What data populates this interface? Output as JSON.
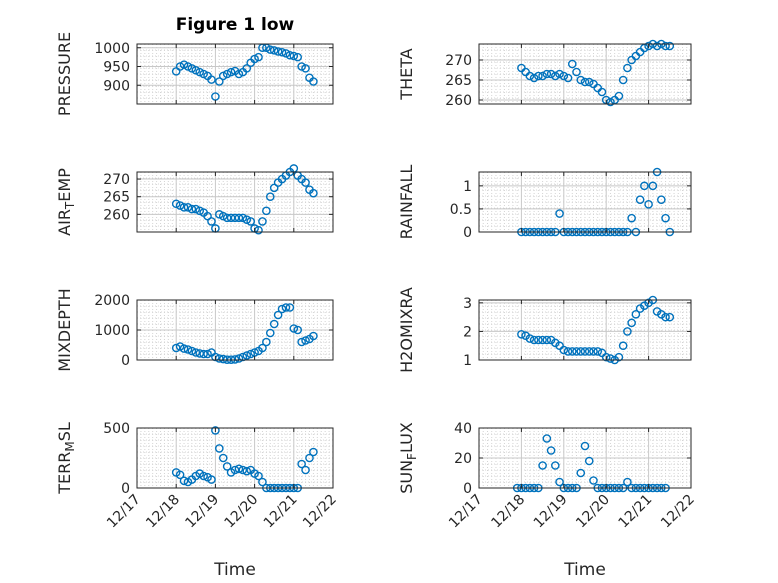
{
  "figure": {
    "title": "Figure 1 low"
  },
  "chart_data": [
    {
      "type": "scatter",
      "title": "Figure 1 low",
      "xlabel": "",
      "ylabel": "PRESSURE",
      "xlim": [
        0,
        5
      ],
      "ylim": [
        850,
        1010
      ],
      "yticks": [
        900,
        950,
        1000
      ],
      "xtick_labels": [
        "12/17",
        "12/18",
        "12/19",
        "12/20",
        "12/21",
        "12/22"
      ],
      "show_xticklabels": false,
      "marker_color": "#0072BD",
      "x": [
        1.0,
        1.1,
        1.2,
        1.3,
        1.4,
        1.5,
        1.6,
        1.7,
        1.8,
        1.9,
        2.0,
        2.1,
        2.2,
        2.3,
        2.4,
        2.5,
        2.6,
        2.7,
        2.8,
        2.9,
        3.0,
        3.1,
        3.2,
        3.3,
        3.4,
        3.5,
        3.6,
        3.7,
        3.8,
        3.9,
        4.0,
        4.1,
        4.2,
        4.3,
        4.4,
        4.5
      ],
      "y": [
        937,
        950,
        955,
        950,
        945,
        940,
        935,
        930,
        925,
        915,
        870,
        910,
        925,
        930,
        935,
        938,
        930,
        935,
        945,
        960,
        970,
        975,
        1000,
        1000,
        995,
        993,
        990,
        988,
        985,
        980,
        978,
        975,
        950,
        945,
        920,
        910
      ]
    },
    {
      "type": "scatter",
      "title": "",
      "xlabel": "",
      "ylabel": "THETA",
      "xlim": [
        0,
        5
      ],
      "ylim": [
        259,
        274
      ],
      "yticks": [
        260,
        265,
        270
      ],
      "xtick_labels": [
        "12/17",
        "12/18",
        "12/19",
        "12/20",
        "12/21",
        "12/22"
      ],
      "show_xticklabels": false,
      "marker_color": "#0072BD",
      "x": [
        1.0,
        1.1,
        1.2,
        1.3,
        1.4,
        1.5,
        1.6,
        1.7,
        1.8,
        1.9,
        2.0,
        2.1,
        2.2,
        2.3,
        2.4,
        2.5,
        2.6,
        2.7,
        2.8,
        2.9,
        3.0,
        3.1,
        3.2,
        3.3,
        3.4,
        3.5,
        3.6,
        3.7,
        3.8,
        3.9,
        4.0,
        4.1,
        4.2,
        4.3,
        4.4,
        4.5
      ],
      "y": [
        268,
        267,
        266,
        265.5,
        266,
        266,
        266.5,
        266.5,
        266,
        266.5,
        266,
        265.5,
        269,
        267,
        265,
        264.5,
        264.5,
        264,
        263,
        262,
        260,
        259.5,
        260,
        261,
        265,
        268,
        270,
        271,
        272,
        273,
        273.5,
        274,
        273.5,
        274,
        273.5,
        273.5
      ]
    },
    {
      "type": "scatter",
      "title": "",
      "xlabel": "",
      "ylabel": "AIR_TEMP",
      "xlim": [
        0,
        5
      ],
      "ylim": [
        255,
        272
      ],
      "yticks": [
        260,
        265,
        270
      ],
      "xtick_labels": [
        "12/17",
        "12/18",
        "12/19",
        "12/20",
        "12/21",
        "12/22"
      ],
      "show_xticklabels": false,
      "marker_color": "#0072BD",
      "x": [
        1.0,
        1.1,
        1.2,
        1.3,
        1.4,
        1.5,
        1.6,
        1.7,
        1.8,
        1.9,
        2.0,
        2.1,
        2.2,
        2.3,
        2.4,
        2.5,
        2.6,
        2.7,
        2.8,
        2.9,
        3.0,
        3.1,
        3.2,
        3.3,
        3.4,
        3.5,
        3.6,
        3.7,
        3.8,
        3.9,
        4.0,
        4.1,
        4.2,
        4.3,
        4.4,
        4.5
      ],
      "y": [
        263,
        262.5,
        262,
        262,
        261.5,
        261.5,
        261,
        260.5,
        259.5,
        258,
        256,
        260,
        259.5,
        259,
        259,
        259,
        259,
        259,
        258.5,
        258,
        256,
        255.5,
        258,
        261,
        265,
        267.5,
        269,
        270,
        271,
        272,
        273,
        271,
        270,
        269,
        267,
        266
      ]
    },
    {
      "type": "scatter",
      "title": "",
      "xlabel": "",
      "ylabel": "RAINFALL",
      "xlim": [
        0,
        5
      ],
      "ylim": [
        0,
        1.3
      ],
      "yticks": [
        0,
        0.5,
        1
      ],
      "ytick_labels": [
        "0",
        "0.5",
        "1"
      ],
      "xtick_labels": [
        "12/17",
        "12/18",
        "12/19",
        "12/20",
        "12/21",
        "12/22"
      ],
      "show_xticklabels": false,
      "marker_color": "#0072BD",
      "x": [
        1.0,
        1.1,
        1.2,
        1.3,
        1.4,
        1.5,
        1.6,
        1.7,
        1.8,
        1.9,
        2.0,
        2.1,
        2.2,
        2.3,
        2.4,
        2.5,
        2.6,
        2.7,
        2.8,
        2.9,
        3.0,
        3.1,
        3.2,
        3.3,
        3.4,
        3.5,
        3.6,
        3.7,
        3.8,
        3.9,
        4.0,
        4.1,
        4.2,
        4.3,
        4.4,
        4.5
      ],
      "y": [
        0,
        0,
        0,
        0,
        0,
        0,
        0,
        0,
        0,
        0.4,
        0,
        0,
        0,
        0,
        0,
        0,
        0,
        0,
        0,
        0,
        0,
        0,
        0,
        0,
        0,
        0,
        0.3,
        0,
        0.7,
        1,
        0.6,
        1,
        1.3,
        0.7,
        0.3,
        0
      ]
    },
    {
      "type": "scatter",
      "title": "",
      "xlabel": "",
      "ylabel": "MIXDEPTH",
      "xlim": [
        0,
        5
      ],
      "ylim": [
        0,
        2000
      ],
      "yticks": [
        0,
        1000,
        2000
      ],
      "xtick_labels": [
        "12/17",
        "12/18",
        "12/19",
        "12/20",
        "12/21",
        "12/22"
      ],
      "show_xticklabels": false,
      "marker_color": "#0072BD",
      "x": [
        1.0,
        1.1,
        1.2,
        1.3,
        1.4,
        1.5,
        1.6,
        1.7,
        1.8,
        1.9,
        2.0,
        2.1,
        2.2,
        2.3,
        2.4,
        2.5,
        2.6,
        2.7,
        2.8,
        2.9,
        3.0,
        3.1,
        3.2,
        3.3,
        3.4,
        3.5,
        3.6,
        3.7,
        3.8,
        3.9,
        4.0,
        4.1,
        4.2,
        4.3,
        4.4,
        4.5
      ],
      "y": [
        400,
        450,
        380,
        350,
        300,
        250,
        220,
        200,
        200,
        250,
        100,
        50,
        30,
        10,
        10,
        20,
        50,
        100,
        150,
        200,
        250,
        300,
        400,
        600,
        900,
        1200,
        1500,
        1700,
        1750,
        1750,
        1050,
        1000,
        600,
        650,
        700,
        800
      ]
    },
    {
      "type": "scatter",
      "title": "",
      "xlabel": "",
      "ylabel": "H2OMIXRA",
      "xlim": [
        0,
        5
      ],
      "ylim": [
        1,
        3.1
      ],
      "yticks": [
        1,
        2,
        3
      ],
      "xtick_labels": [
        "12/17",
        "12/18",
        "12/19",
        "12/20",
        "12/21",
        "12/22"
      ],
      "show_xticklabels": false,
      "marker_color": "#0072BD",
      "x": [
        1.0,
        1.1,
        1.2,
        1.3,
        1.4,
        1.5,
        1.6,
        1.7,
        1.8,
        1.9,
        2.0,
        2.1,
        2.2,
        2.3,
        2.4,
        2.5,
        2.6,
        2.7,
        2.8,
        2.9,
        3.0,
        3.1,
        3.2,
        3.3,
        3.4,
        3.5,
        3.6,
        3.7,
        3.8,
        3.9,
        4.0,
        4.1,
        4.2,
        4.3,
        4.4,
        4.5
      ],
      "y": [
        1.9,
        1.85,
        1.75,
        1.7,
        1.7,
        1.7,
        1.7,
        1.7,
        1.6,
        1.5,
        1.35,
        1.3,
        1.3,
        1.3,
        1.3,
        1.3,
        1.3,
        1.3,
        1.3,
        1.25,
        1.1,
        1.05,
        1.0,
        1.1,
        1.5,
        2.0,
        2.3,
        2.6,
        2.8,
        2.9,
        3.0,
        3.1,
        2.7,
        2.6,
        2.5,
        2.5
      ]
    },
    {
      "type": "scatter",
      "title": "",
      "xlabel": "Time",
      "ylabel": "TERR_MSL",
      "xlim": [
        0,
        5
      ],
      "ylim": [
        0,
        500
      ],
      "yticks": [
        0,
        500
      ],
      "xtick_labels": [
        "12/17",
        "12/18",
        "12/19",
        "12/20",
        "12/21",
        "12/22"
      ],
      "show_xticklabels": true,
      "marker_color": "#0072BD",
      "x": [
        1.0,
        1.1,
        1.2,
        1.3,
        1.4,
        1.5,
        1.6,
        1.7,
        1.8,
        1.9,
        2.0,
        2.1,
        2.2,
        2.3,
        2.4,
        2.5,
        2.6,
        2.7,
        2.8,
        2.9,
        3.0,
        3.1,
        3.2,
        3.3,
        3.4,
        3.5,
        3.6,
        3.7,
        3.8,
        3.9,
        4.0,
        4.1,
        4.2,
        4.3,
        4.4,
        4.5
      ],
      "y": [
        130,
        110,
        60,
        50,
        70,
        100,
        120,
        100,
        90,
        70,
        480,
        330,
        250,
        180,
        130,
        150,
        160,
        150,
        140,
        150,
        120,
        100,
        50,
        0,
        0,
        0,
        0,
        0,
        0,
        0,
        0,
        0,
        200,
        150,
        250,
        300
      ]
    },
    {
      "type": "scatter",
      "title": "",
      "xlabel": "Time",
      "ylabel": "SUN_FLUX",
      "xlim": [
        0,
        5
      ],
      "ylim": [
        0,
        40
      ],
      "yticks": [
        0,
        20,
        40
      ],
      "xtick_labels": [
        "12/17",
        "12/18",
        "12/19",
        "12/20",
        "12/21",
        "12/22"
      ],
      "show_xticklabels": true,
      "marker_color": "#0072BD",
      "x": [
        0.9,
        1.0,
        1.1,
        1.2,
        1.3,
        1.4,
        1.5,
        1.6,
        1.7,
        1.8,
        1.9,
        2.0,
        2.1,
        2.2,
        2.3,
        2.4,
        2.5,
        2.6,
        2.7,
        2.8,
        2.9,
        3.0,
        3.1,
        3.2,
        3.3,
        3.4,
        3.5,
        3.6,
        3.7,
        3.8,
        3.9,
        4.0,
        4.1,
        4.2,
        4.3,
        4.4
      ],
      "y": [
        0,
        0,
        0,
        0,
        0,
        0,
        15,
        33,
        25,
        15,
        4,
        0,
        0,
        0,
        0,
        10,
        28,
        18,
        5,
        0,
        0,
        0,
        0,
        0,
        0,
        0,
        4,
        0,
        0,
        0,
        0,
        0,
        0,
        0,
        0,
        0
      ]
    }
  ]
}
